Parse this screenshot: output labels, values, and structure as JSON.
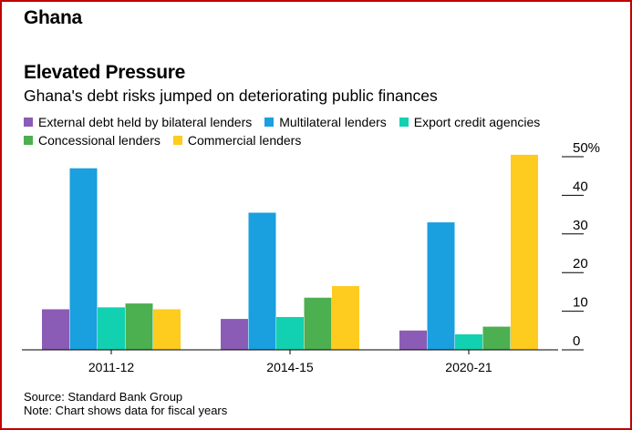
{
  "header": {
    "region": "Ghana"
  },
  "chart_data": {
    "type": "bar",
    "title": "Elevated Pressure",
    "subtitle": "Ghana's debt risks jumped on deteriorating public finances",
    "categories": [
      "2011-12",
      "2014-15",
      "2020-21"
    ],
    "series": [
      {
        "name": "External debt held by bilateral lenders",
        "color": "#8b5cb5",
        "values": [
          10.5,
          8,
          5
        ]
      },
      {
        "name": "Multilateral lenders",
        "color": "#1a9fdf",
        "values": [
          47,
          35.5,
          33
        ]
      },
      {
        "name": "Export credit agencies",
        "color": "#12d1b0",
        "values": [
          11,
          8.5,
          4
        ]
      },
      {
        "name": "Concessional lenders",
        "color": "#4caf50",
        "values": [
          12,
          13.5,
          6
        ]
      },
      {
        "name": "Commercial lenders",
        "color": "#fecb1f",
        "values": [
          10.5,
          16.5,
          50.5
        ]
      }
    ],
    "legend_rows": [
      [
        0,
        1,
        2
      ],
      [
        3,
        4
      ]
    ],
    "ylim": [
      0,
      50
    ],
    "yticks": [
      0,
      10,
      20,
      30,
      40,
      50
    ],
    "ytick_labels": [
      "0",
      "10",
      "20",
      "30",
      "40",
      "50%"
    ],
    "y_axis_side": "right",
    "legend_position": "top-left",
    "grid": false
  },
  "footer": {
    "source": "Source: Standard Bank Group",
    "note": "Note: Chart shows data for fiscal years"
  }
}
